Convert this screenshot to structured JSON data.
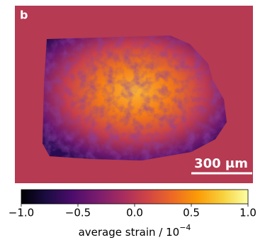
{
  "chart_data": {
    "type": "image",
    "panel_label": "b",
    "scale_bar": "300 μm",
    "colormap": "inferno",
    "background_color": "#b53a52",
    "colorbar": {
      "label": "average strain / 10",
      "label_exponent": "−4",
      "clim": [
        -1,
        1
      ],
      "ticks": [
        {
          "value": -1,
          "label": "−1.0"
        },
        {
          "value": -0.5,
          "label": "−0.5"
        },
        {
          "value": 0,
          "label": "0.0"
        },
        {
          "value": 0.5,
          "label": "0.5"
        },
        {
          "value": 1,
          "label": "1.0"
        }
      ]
    }
  }
}
